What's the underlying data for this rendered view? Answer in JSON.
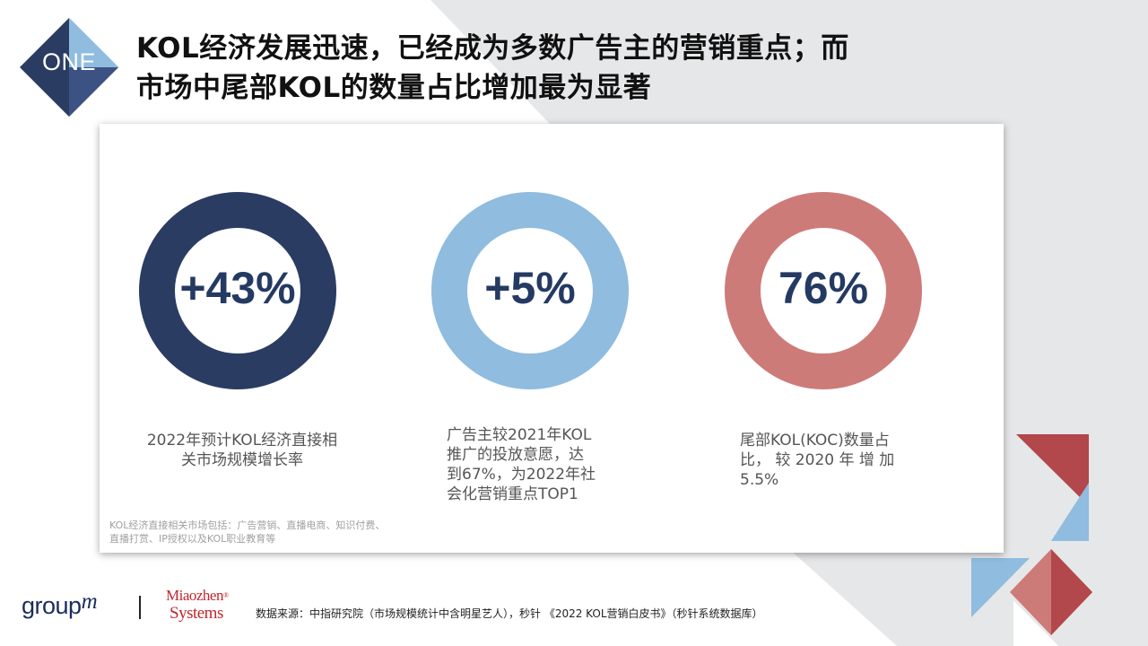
{
  "header": {
    "badge": "ONE",
    "title_line1": "KOL经济发展迅速，已经成为多数广告主的营销重点；而",
    "title_line2": "市场中尾部KOL的数量占比增加最为显著"
  },
  "stats": [
    {
      "value": "+43%",
      "color": "#2b3c63",
      "desc_lines": [
        "2022年预计KOL经济直接相",
        "关市场规模增长率"
      ]
    },
    {
      "value": "+5%",
      "color": "#8fbcdf",
      "desc_lines": [
        "广告主较2021年KOL",
        "推广的投放意愿，达",
        "到67%，为2022年社",
        "会化营销重点TOP1"
      ]
    },
    {
      "value": "76%",
      "color": "#cd7b79",
      "desc_lines": [
        "尾部KOL(KOC)数量占",
        "比， 较 2020 年 增 加",
        "5.5%"
      ]
    }
  ],
  "note_lines": [
    "KOL经济直接相关市场包括：广告营销、直播电商、知识付费、",
    "直播打赏、IP授权以及KOL职业教育等"
  ],
  "footer": {
    "source": "数据来源：中指研究院（市场规模统计中含明星艺人），秒针 《2022 KOL营销白皮书》（秒针系统数据库）",
    "logo_groupm": "group",
    "logo_groupm_m": "m",
    "logo_mz_top": "Miaozhen",
    "logo_mz_tm": "®",
    "logo_mz_bottom": "Systems"
  },
  "colors": {
    "navy": "#2b3c63",
    "light_blue": "#8fbcdf",
    "salmon": "#cd7b79",
    "dark_red": "#b2474c",
    "background_gray": "#e6e7e8"
  }
}
